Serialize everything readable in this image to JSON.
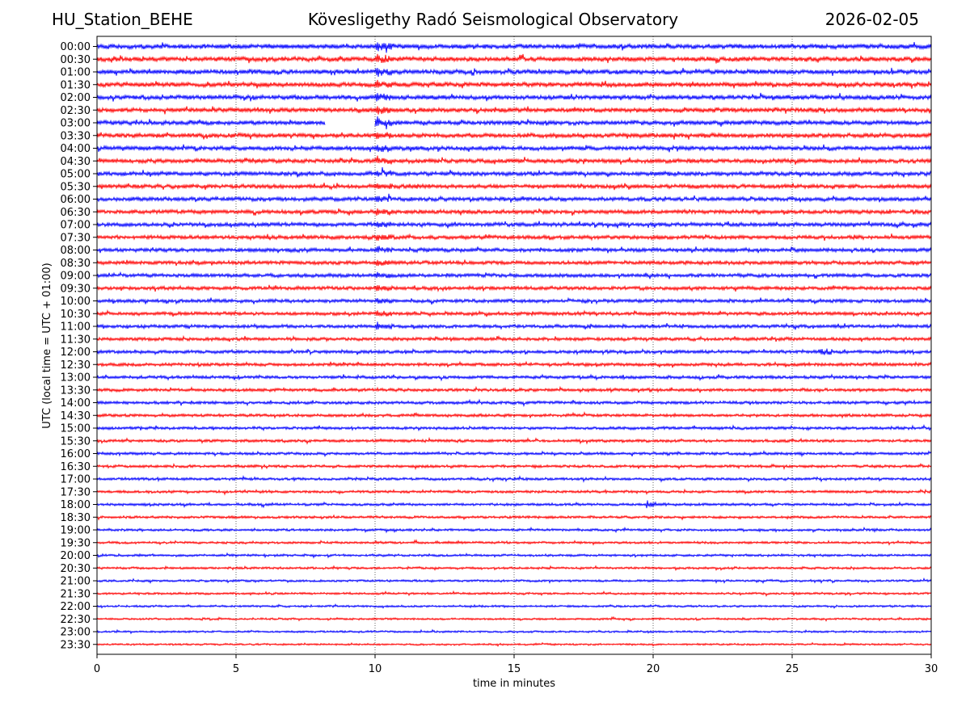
{
  "chart_data": {
    "type": "line",
    "station": "HU_Station_BEHE",
    "title": "Kövesligethy Radó Seismological Observatory",
    "date": "2026-02-05",
    "xlabel": "time in minutes",
    "ylabel": "UTC (local time = UTC + 01:00)",
    "xlim": [
      0,
      30
    ],
    "x_ticks": [
      0,
      5,
      10,
      15,
      20,
      25,
      30
    ],
    "row_labels": [
      "00:00",
      "00:30",
      "01:00",
      "01:30",
      "02:00",
      "02:30",
      "03:00",
      "03:30",
      "04:00",
      "04:30",
      "05:00",
      "05:30",
      "06:00",
      "06:30",
      "07:00",
      "07:30",
      "08:00",
      "08:30",
      "09:00",
      "09:30",
      "10:00",
      "10:30",
      "11:00",
      "11:30",
      "12:00",
      "12:30",
      "13:00",
      "13:30",
      "14:00",
      "14:30",
      "15:00",
      "15:30",
      "16:00",
      "16:30",
      "17:00",
      "17:30",
      "18:00",
      "18:30",
      "19:00",
      "19:30",
      "20:00",
      "20:30",
      "21:00",
      "21:30",
      "22:00",
      "22:30",
      "23:00",
      "23:30"
    ],
    "series_colors": [
      "#0000ff",
      "#ff0000"
    ],
    "grid": "vertical dotted lines at 5-minute ticks",
    "events": [
      {
        "rows": "00:00-11:00",
        "x_minutes": 10.1,
        "description": "teleseismic arrival, strongest at 03:00"
      },
      {
        "rows": "18:00",
        "x_minutes": 19.8,
        "description": "local event burst"
      }
    ],
    "data_gap": {
      "row": "03:00",
      "x_range_minutes": [
        8.2,
        10.0
      ]
    }
  }
}
